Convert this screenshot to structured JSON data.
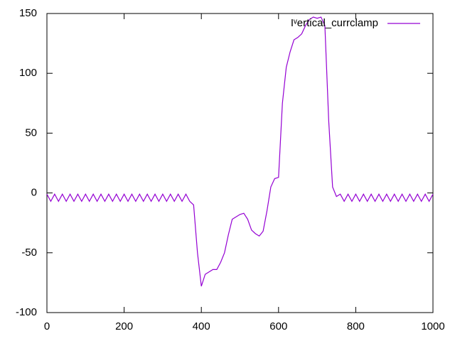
{
  "chart_data": {
    "type": "line",
    "x": [
      0,
      10,
      20,
      30,
      40,
      50,
      60,
      70,
      80,
      90,
      100,
      110,
      120,
      130,
      140,
      150,
      160,
      170,
      180,
      190,
      200,
      210,
      220,
      230,
      240,
      250,
      260,
      270,
      280,
      290,
      300,
      310,
      320,
      330,
      340,
      350,
      360,
      370,
      380,
      390,
      400,
      410,
      420,
      430,
      440,
      450,
      460,
      470,
      480,
      490,
      500,
      510,
      520,
      530,
      540,
      550,
      560,
      570,
      580,
      590,
      600,
      610,
      620,
      630,
      640,
      650,
      660,
      670,
      680,
      690,
      700,
      710,
      720,
      730,
      740,
      750,
      760,
      770,
      780,
      790,
      800,
      810,
      820,
      830,
      840,
      850,
      860,
      870,
      880,
      890,
      900,
      910,
      920,
      930,
      940,
      950,
      960,
      970,
      980,
      990,
      1000
    ],
    "series": [
      {
        "name": "Iᵛertical_currclamp",
        "color": "#9400d3",
        "values": [
          -1,
          -7,
          -1,
          -7,
          -1,
          -7,
          -1,
          -7,
          -1,
          -7,
          -1,
          -7,
          -1,
          -7,
          -1,
          -7,
          -1,
          -7,
          -1,
          -7,
          -1,
          -7,
          -1,
          -7,
          -1,
          -7,
          -1,
          -7,
          -1,
          -7,
          -1,
          -7,
          -1,
          -7,
          -1,
          -7,
          -1,
          -7,
          -10,
          -50,
          -78,
          -68,
          -66,
          -64,
          -64,
          -58,
          -50,
          -35,
          -22,
          -20,
          -18,
          -17,
          -22,
          -31,
          -34,
          -36,
          -32,
          -15,
          5,
          12,
          13,
          75,
          105,
          118,
          128,
          130,
          133,
          140,
          145,
          147,
          146,
          147,
          140,
          60,
          5,
          -3,
          -1,
          -7,
          -1,
          -7,
          -1,
          -7,
          -1,
          -7,
          -1,
          -7,
          -1,
          -7,
          -1,
          -7,
          -1,
          -7,
          -1,
          -7,
          -1,
          -7,
          -1,
          -7,
          -1,
          -7,
          -1
        ]
      }
    ],
    "xlim": [
      0,
      1000
    ],
    "xticks": [
      0,
      200,
      400,
      600,
      800,
      1000
    ],
    "ylim": [
      -100,
      150
    ],
    "yticks": [
      -100,
      -50,
      0,
      50,
      100,
      150
    ],
    "legend": "top-right"
  }
}
